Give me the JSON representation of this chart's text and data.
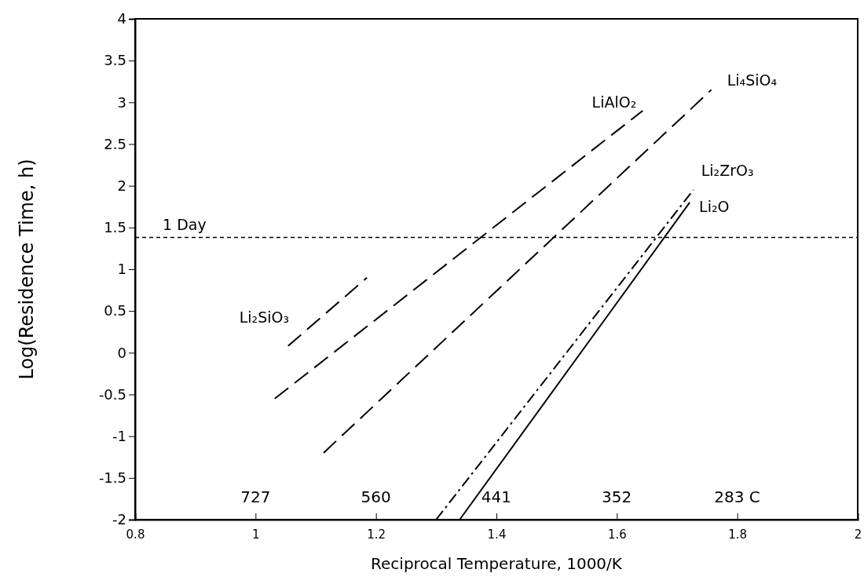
{
  "chart_data": {
    "type": "line",
    "xlabel": "Reciprocal Temperature, 1000/K",
    "ylabel": "Log(Residence Time, h)",
    "xlim": [
      0.8,
      2
    ],
    "xticks": [
      0.8,
      1,
      1.2,
      1.4,
      1.6,
      1.8,
      2
    ],
    "ylim": [
      -2,
      4
    ],
    "yticks": [
      -2,
      -1.5,
      -1,
      -0.5,
      0,
      0.5,
      1,
      1.5,
      2,
      2.5,
      3,
      3.5,
      4
    ],
    "grid": false,
    "series": [
      {
        "name": "Li₂SiO₃",
        "color": "#000000",
        "line_style": "dashed",
        "x": [
          1.054,
          1.185
        ],
        "values": [
          0.08,
          0.9
        ]
      },
      {
        "name": "LiAlO₂",
        "color": "#000000",
        "line_style": "dashed",
        "x": [
          1.032,
          1.643
        ],
        "values": [
          -0.55,
          2.9
        ]
      },
      {
        "name": "Li₄SiO₄",
        "color": "#000000",
        "line_style": "dashed",
        "x": [
          1.113,
          1.757
        ],
        "values": [
          -1.2,
          3.15
        ]
      },
      {
        "name": "Li₂ZrO₃",
        "color": "#000000",
        "line_style": "dotted",
        "x": [
          1.3,
          1.727
        ],
        "values": [
          -2,
          1.95
        ]
      },
      {
        "name": "Li₂O",
        "color": "#000000",
        "line_style": "solid",
        "x": [
          1.339,
          1.721
        ],
        "values": [
          -2,
          1.8
        ]
      }
    ],
    "ref_lines": [
      {
        "axis": "y",
        "value": 1.38,
        "label": "1 Day",
        "line_style": "dotted",
        "color": "#000000"
      }
    ],
    "annotations": [
      "727",
      "560",
      "441",
      "352",
      "283 C"
    ]
  }
}
